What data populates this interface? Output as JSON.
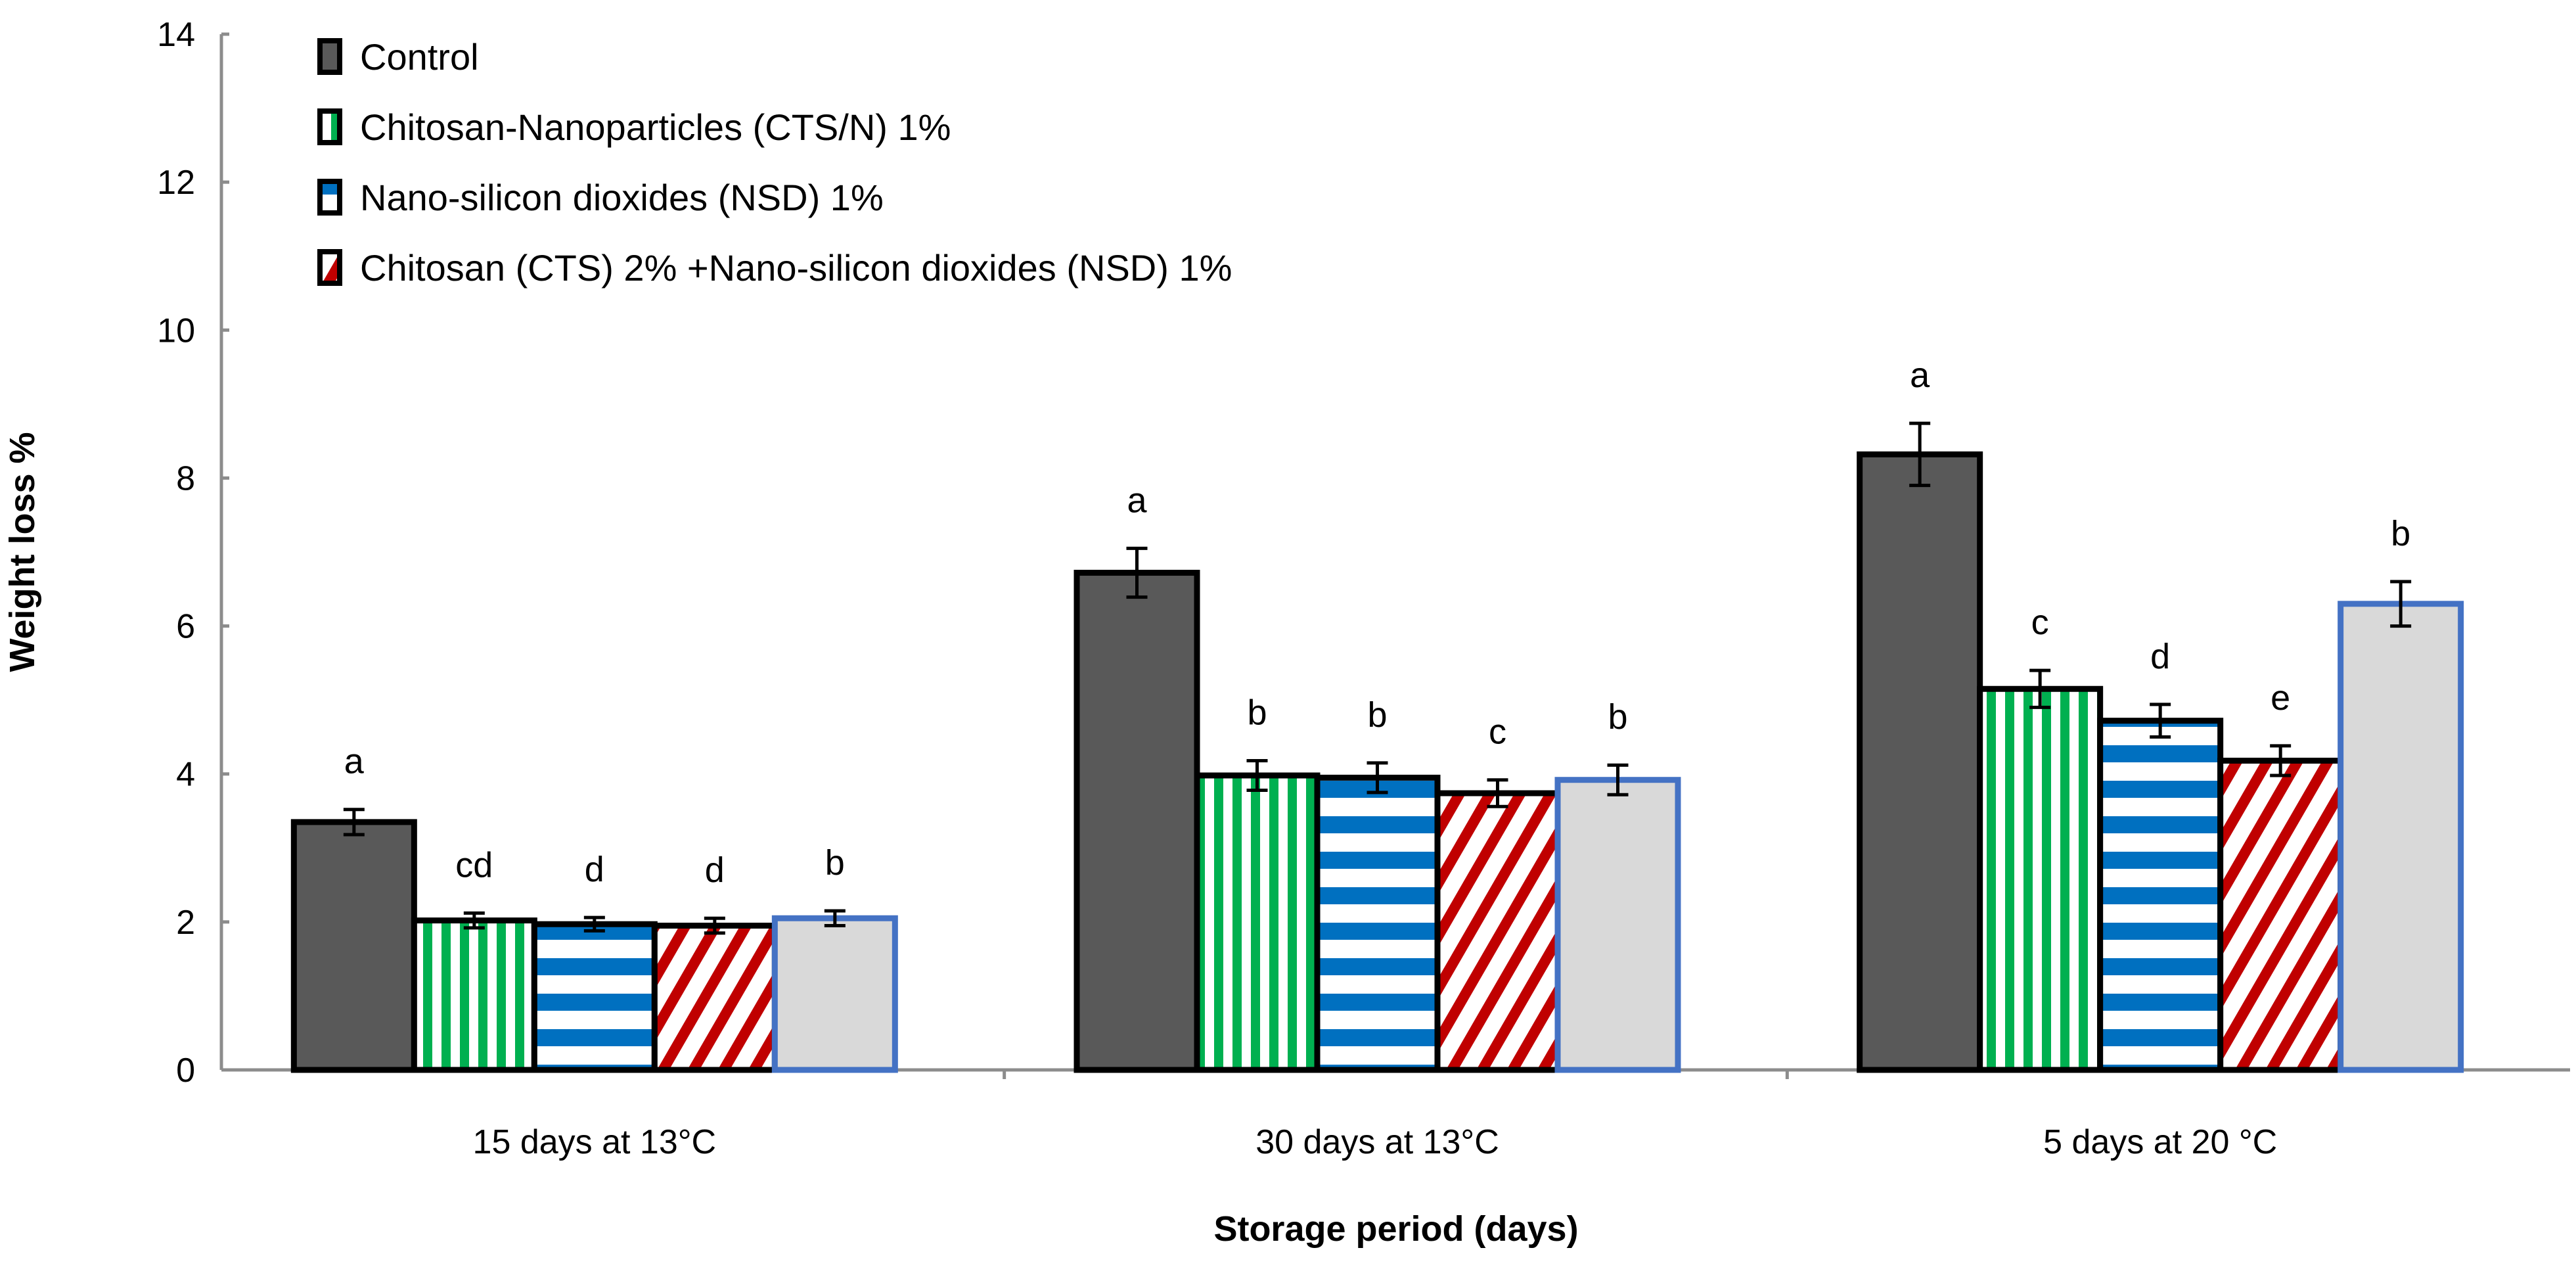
{
  "chart_data": {
    "type": "bar",
    "title": "",
    "xlabel": "Storage period (days)",
    "ylabel": "Weight loss %",
    "ylim": [
      0,
      14
    ],
    "yticks": [
      0,
      2,
      4,
      6,
      8,
      10,
      12,
      14
    ],
    "grid": false,
    "legend_placement": "top-left",
    "categories": [
      "15 days at 13°C",
      "30 days at 13°C",
      "5 days at 20 °C"
    ],
    "series": [
      {
        "name": "Control",
        "in_legend": true,
        "fill": "#595959",
        "pattern": "solid",
        "stroke": "#000000",
        "values": [
          3.35,
          6.72,
          8.32
        ],
        "errors": [
          0.17,
          0.33,
          0.42
        ],
        "letters": [
          "a",
          "a",
          "a"
        ]
      },
      {
        "name": "Chitosan-Nanoparticles (CTS/N) 1%",
        "in_legend": true,
        "fill": "#00b050",
        "pattern": "vertical",
        "stroke": "#000000",
        "values": [
          2.02,
          3.98,
          5.15
        ],
        "errors": [
          0.1,
          0.2,
          0.25
        ],
        "letters": [
          "cd",
          "b",
          "c"
        ]
      },
      {
        "name": "Nano-silicon dioxides  (NSD) 1%",
        "in_legend": true,
        "fill": "#0070c0",
        "pattern": "horizontal",
        "stroke": "#000000",
        "values": [
          1.97,
          3.95,
          4.72
        ],
        "errors": [
          0.09,
          0.2,
          0.22
        ],
        "letters": [
          "d",
          "b",
          "d"
        ]
      },
      {
        "name": "Chitosan (CTS) 2% +Nano-silicon dioxides  (NSD) 1%",
        "in_legend": true,
        "fill": "#c00000",
        "pattern": "diagonal",
        "stroke": "#000000",
        "values": [
          1.95,
          3.74,
          4.18
        ],
        "errors": [
          0.1,
          0.18,
          0.2
        ],
        "letters": [
          "d",
          "c",
          "e"
        ]
      },
      {
        "name": "",
        "in_legend": false,
        "fill": "#d9d9d9",
        "pattern": "solid",
        "stroke": "#4472c4",
        "values": [
          2.05,
          3.92,
          6.3
        ],
        "errors": [
          0.1,
          0.2,
          0.3
        ],
        "letters": [
          "b",
          "b",
          "b"
        ]
      }
    ]
  }
}
